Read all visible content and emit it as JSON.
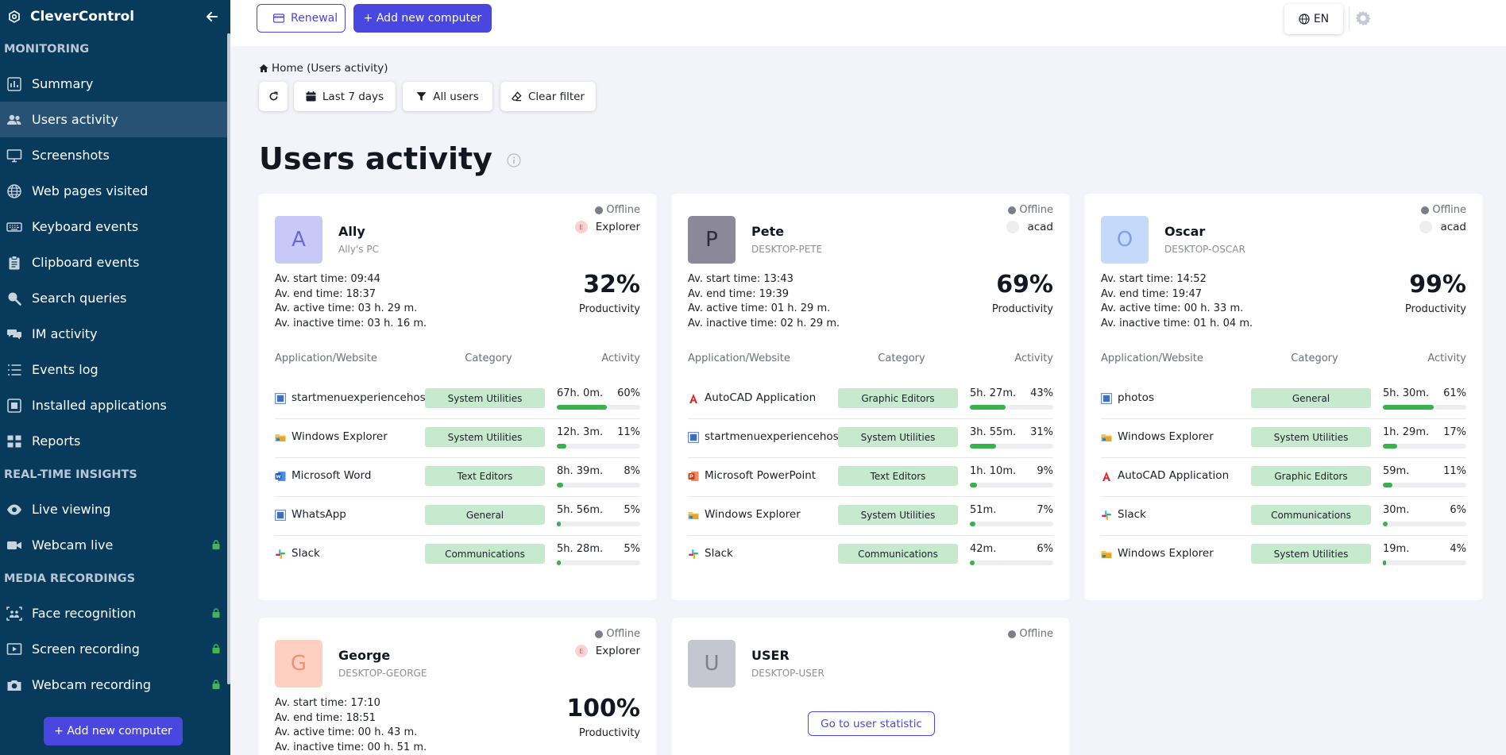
{
  "sidebar": {
    "brand": "CleverControl",
    "sections": {
      "monitoring": "MONITORING",
      "realtime": "REAL-TIME INSIGHTS",
      "media": "MEDIA RECORDINGS"
    },
    "items": [
      {
        "label": "Summary",
        "icon": "bar-chart-icon",
        "active": false,
        "locked": false
      },
      {
        "label": "Users activity",
        "icon": "users-icon",
        "active": true,
        "locked": false
      },
      {
        "label": "Screenshots",
        "icon": "monitor-icon",
        "active": false,
        "locked": false
      },
      {
        "label": "Web pages visited",
        "icon": "globe-icon",
        "active": false,
        "locked": false
      },
      {
        "label": "Keyboard events",
        "icon": "keyboard-icon",
        "active": false,
        "locked": false
      },
      {
        "label": "Clipboard events",
        "icon": "clipboard-icon",
        "active": false,
        "locked": false
      },
      {
        "label": "Search queries",
        "icon": "search-icon",
        "active": false,
        "locked": false
      },
      {
        "label": "IM activity",
        "icon": "chat-icon",
        "active": false,
        "locked": false
      },
      {
        "label": "Events log",
        "icon": "list-icon",
        "active": false,
        "locked": false
      },
      {
        "label": "Installed applications",
        "icon": "app-install-icon",
        "active": false,
        "locked": false
      },
      {
        "label": "Reports",
        "icon": "grid-icon",
        "active": false,
        "locked": false
      },
      {
        "label": "Live viewing",
        "icon": "eye-icon",
        "active": false,
        "locked": false
      },
      {
        "label": "Webcam live",
        "icon": "video-camera-icon",
        "active": false,
        "locked": true
      },
      {
        "label": "Face recognition",
        "icon": "face-scan-icon",
        "active": false,
        "locked": true
      },
      {
        "label": "Screen recording",
        "icon": "screen-play-icon",
        "active": false,
        "locked": true
      },
      {
        "label": "Webcam recording",
        "icon": "camera-icon",
        "active": false,
        "locked": true
      }
    ],
    "add_button": "+ Add new computer"
  },
  "topbar": {
    "renewal": "Renewal",
    "add_computer": "+ Add new computer",
    "language": "EN"
  },
  "breadcrumb": "Home (Users activity)",
  "filters": {
    "period": "Last 7 days",
    "users": "All users",
    "clear": "Clear filter"
  },
  "page_title": "Users activity",
  "table_headers": {
    "app": "Application/Website",
    "category": "Category",
    "activity": "Activity"
  },
  "users": [
    {
      "initial": "A",
      "name": "Ally",
      "pc": "Ally's PC",
      "status": "Offline",
      "current_app": "Explorer",
      "current_app_letter": "E",
      "avatar_bg": "#c8c9f6",
      "avatar_fg": "#6a67d8",
      "app_dot_bg": "#f8d3d3",
      "start": "Av. start time: 09:44",
      "end": "Av. end time: 18:37",
      "active": "Av. active time: 03 h. 29 m.",
      "inactive": "Av. inactive time: 03 h. 16 m.",
      "productivity": "32%",
      "productivity_label": "Productivity",
      "apps": [
        {
          "icon": "window-app-icon",
          "name": "startmenuexperiencehost",
          "category": "System Utilities",
          "time": "67h. 0m.",
          "pct": "60%",
          "ratio": 0.6
        },
        {
          "icon": "folder-icon",
          "name": "Windows Explorer",
          "category": "System Utilities",
          "time": "12h. 3m.",
          "pct": "11%",
          "ratio": 0.11
        },
        {
          "icon": "word-icon",
          "name": "Microsoft Word",
          "category": "Text Editors",
          "time": "8h. 39m.",
          "pct": "8%",
          "ratio": 0.08
        },
        {
          "icon": "window-app-icon",
          "name": "WhatsApp",
          "category": "General",
          "time": "5h. 56m.",
          "pct": "5%",
          "ratio": 0.05
        },
        {
          "icon": "slack-icon",
          "name": "Slack",
          "category": "Communications",
          "time": "5h. 28m.",
          "pct": "5%",
          "ratio": 0.05
        }
      ]
    },
    {
      "initial": "P",
      "name": "Pete",
      "pc": "DESKTOP-PETE",
      "status": "Offline",
      "current_app": "acad",
      "current_app_letter": "",
      "avatar_bg": "#8a8899",
      "avatar_fg": "#2d2a3e",
      "app_dot_bg": "#eeeeee",
      "start": "Av. start time: 13:43",
      "end": "Av. end time: 19:39",
      "active": "Av. active time: 01 h. 29 m.",
      "inactive": "Av. inactive time: 02 h. 29 m.",
      "productivity": "69%",
      "productivity_label": "Productivity",
      "apps": [
        {
          "icon": "autocad-icon",
          "name": "AutoCAD Application",
          "category": "Graphic Editors",
          "time": "5h. 27m.",
          "pct": "43%",
          "ratio": 0.43
        },
        {
          "icon": "window-app-icon",
          "name": "startmenuexperiencehost",
          "category": "System Utilities",
          "time": "3h. 55m.",
          "pct": "31%",
          "ratio": 0.31
        },
        {
          "icon": "powerpoint-icon",
          "name": "Microsoft PowerPoint",
          "category": "Text Editors",
          "time": "1h. 10m.",
          "pct": "9%",
          "ratio": 0.09
        },
        {
          "icon": "folder-icon",
          "name": "Windows Explorer",
          "category": "System Utilities",
          "time": "51m.",
          "pct": "7%",
          "ratio": 0.07
        },
        {
          "icon": "slack-icon",
          "name": "Slack",
          "category": "Communications",
          "time": "42m.",
          "pct": "6%",
          "ratio": 0.06
        }
      ]
    },
    {
      "initial": "O",
      "name": "Oscar",
      "pc": "DESKTOP-OSCAR",
      "status": "Offline",
      "current_app": "acad",
      "current_app_letter": "",
      "avatar_bg": "#c5d9fb",
      "avatar_fg": "#7ea3e8",
      "app_dot_bg": "#eeeeee",
      "start": "Av. start time: 14:52",
      "end": "Av. end time: 19:47",
      "active": "Av. active time: 00 h. 33 m.",
      "inactive": "Av. inactive time: 01 h. 04 m.",
      "productivity": "99%",
      "productivity_label": "Productivity",
      "apps": [
        {
          "icon": "window-app-icon",
          "name": "photos",
          "category": "General",
          "time": "5h. 30m.",
          "pct": "61%",
          "ratio": 0.61
        },
        {
          "icon": "folder-icon",
          "name": "Windows Explorer",
          "category": "System Utilities",
          "time": "1h. 29m.",
          "pct": "17%",
          "ratio": 0.17
        },
        {
          "icon": "autocad-icon",
          "name": "AutoCAD Application",
          "category": "Graphic Editors",
          "time": "59m.",
          "pct": "11%",
          "ratio": 0.11
        },
        {
          "icon": "slack-icon",
          "name": "Slack",
          "category": "Communications",
          "time": "30m.",
          "pct": "6%",
          "ratio": 0.06
        },
        {
          "icon": "folder-icon",
          "name": "Windows Explorer",
          "category": "System Utilities",
          "time": "19m.",
          "pct": "4%",
          "ratio": 0.04
        }
      ]
    },
    {
      "initial": "G",
      "name": "George",
      "pc": "DESKTOP-GEORGE",
      "status": "Offline",
      "current_app": "Explorer",
      "current_app_letter": "E",
      "avatar_bg": "#fdd0c2",
      "avatar_fg": "#f0906f",
      "app_dot_bg": "#f8d3d3",
      "start": "Av. start time: 17:10",
      "end": "Av. end time: 18:51",
      "active": "Av. active time: 00 h. 43 m.",
      "inactive": "Av. inactive time: 00 h. 51 m.",
      "productivity": "100%",
      "productivity_label": "Productivity",
      "apps": []
    },
    {
      "initial": "U",
      "name": "USER",
      "pc": "DESKTOP-USER",
      "status": "Offline",
      "avatar_bg": "#c4c6d0",
      "avatar_fg": "#7c7f8c",
      "goto": "Go to user statistic"
    }
  ]
}
